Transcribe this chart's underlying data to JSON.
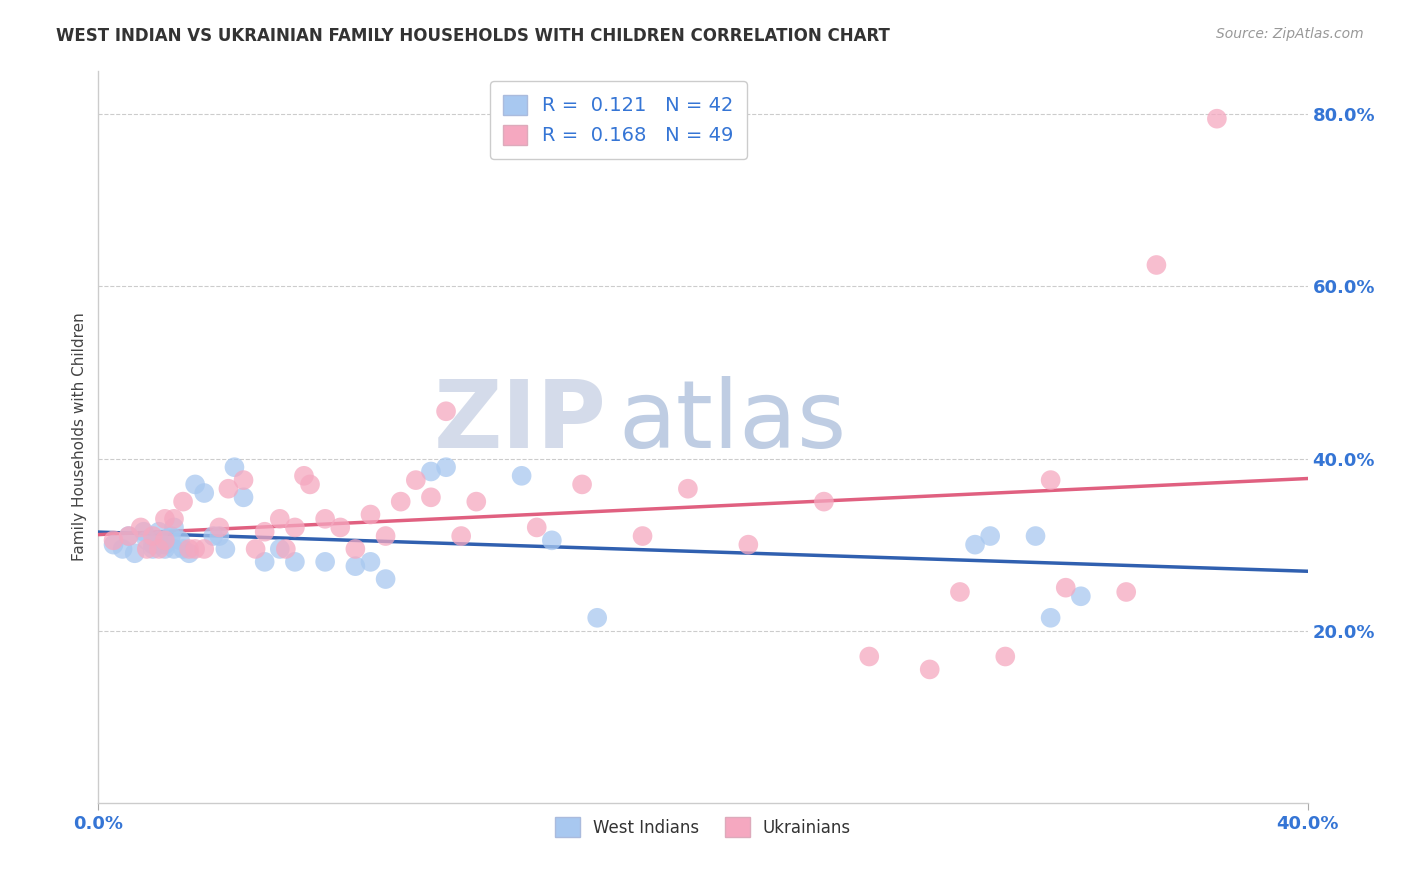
{
  "title": "WEST INDIAN VS UKRAINIAN FAMILY HOUSEHOLDS WITH CHILDREN CORRELATION CHART",
  "source": "Source: ZipAtlas.com",
  "ylabel": "Family Households with Children",
  "x_min": 0.0,
  "x_max": 0.4,
  "y_min": 0.0,
  "y_max": 0.85,
  "yticks": [
    0.2,
    0.4,
    0.6,
    0.8
  ],
  "ytick_labels": [
    "20.0%",
    "40.0%",
    "60.0%",
    "80.0%"
  ],
  "west_indian_R": 0.121,
  "west_indian_N": 42,
  "ukrainian_R": 0.168,
  "ukrainian_N": 49,
  "west_indian_color": "#A8C8F0",
  "ukrainian_color": "#F5A8C0",
  "west_indian_line_color": "#3060B0",
  "ukrainian_line_color": "#E06080",
  "watermark_zip": "ZIP",
  "watermark_atlas": "atlas",
  "west_indian_x": [
    0.005,
    0.008,
    0.01,
    0.012,
    0.015,
    0.016,
    0.018,
    0.018,
    0.02,
    0.02,
    0.022,
    0.022,
    0.024,
    0.025,
    0.025,
    0.027,
    0.028,
    0.03,
    0.032,
    0.035,
    0.038,
    0.04,
    0.042,
    0.045,
    0.048,
    0.055,
    0.06,
    0.065,
    0.075,
    0.085,
    0.09,
    0.095,
    0.11,
    0.115,
    0.14,
    0.15,
    0.165,
    0.29,
    0.295,
    0.31,
    0.315,
    0.325
  ],
  "west_indian_y": [
    0.3,
    0.295,
    0.31,
    0.29,
    0.315,
    0.305,
    0.3,
    0.295,
    0.315,
    0.305,
    0.3,
    0.295,
    0.31,
    0.32,
    0.295,
    0.305,
    0.295,
    0.29,
    0.37,
    0.36,
    0.31,
    0.31,
    0.295,
    0.39,
    0.355,
    0.28,
    0.295,
    0.28,
    0.28,
    0.275,
    0.28,
    0.26,
    0.385,
    0.39,
    0.38,
    0.305,
    0.215,
    0.3,
    0.31,
    0.31,
    0.215,
    0.24
  ],
  "ukrainian_x": [
    0.005,
    0.01,
    0.014,
    0.016,
    0.018,
    0.02,
    0.022,
    0.022,
    0.025,
    0.028,
    0.03,
    0.032,
    0.035,
    0.04,
    0.043,
    0.048,
    0.052,
    0.055,
    0.06,
    0.062,
    0.065,
    0.068,
    0.07,
    0.075,
    0.08,
    0.085,
    0.09,
    0.095,
    0.1,
    0.105,
    0.11,
    0.115,
    0.12,
    0.125,
    0.145,
    0.16,
    0.18,
    0.195,
    0.215,
    0.24,
    0.255,
    0.275,
    0.285,
    0.3,
    0.315,
    0.32,
    0.34,
    0.35,
    0.37
  ],
  "ukrainian_y": [
    0.305,
    0.31,
    0.32,
    0.295,
    0.31,
    0.295,
    0.33,
    0.305,
    0.33,
    0.35,
    0.295,
    0.295,
    0.295,
    0.32,
    0.365,
    0.375,
    0.295,
    0.315,
    0.33,
    0.295,
    0.32,
    0.38,
    0.37,
    0.33,
    0.32,
    0.295,
    0.335,
    0.31,
    0.35,
    0.375,
    0.355,
    0.455,
    0.31,
    0.35,
    0.32,
    0.37,
    0.31,
    0.365,
    0.3,
    0.35,
    0.17,
    0.155,
    0.245,
    0.17,
    0.375,
    0.25,
    0.245,
    0.625,
    0.795
  ],
  "background_color": "#FFFFFF",
  "grid_color": "#CCCCCC"
}
